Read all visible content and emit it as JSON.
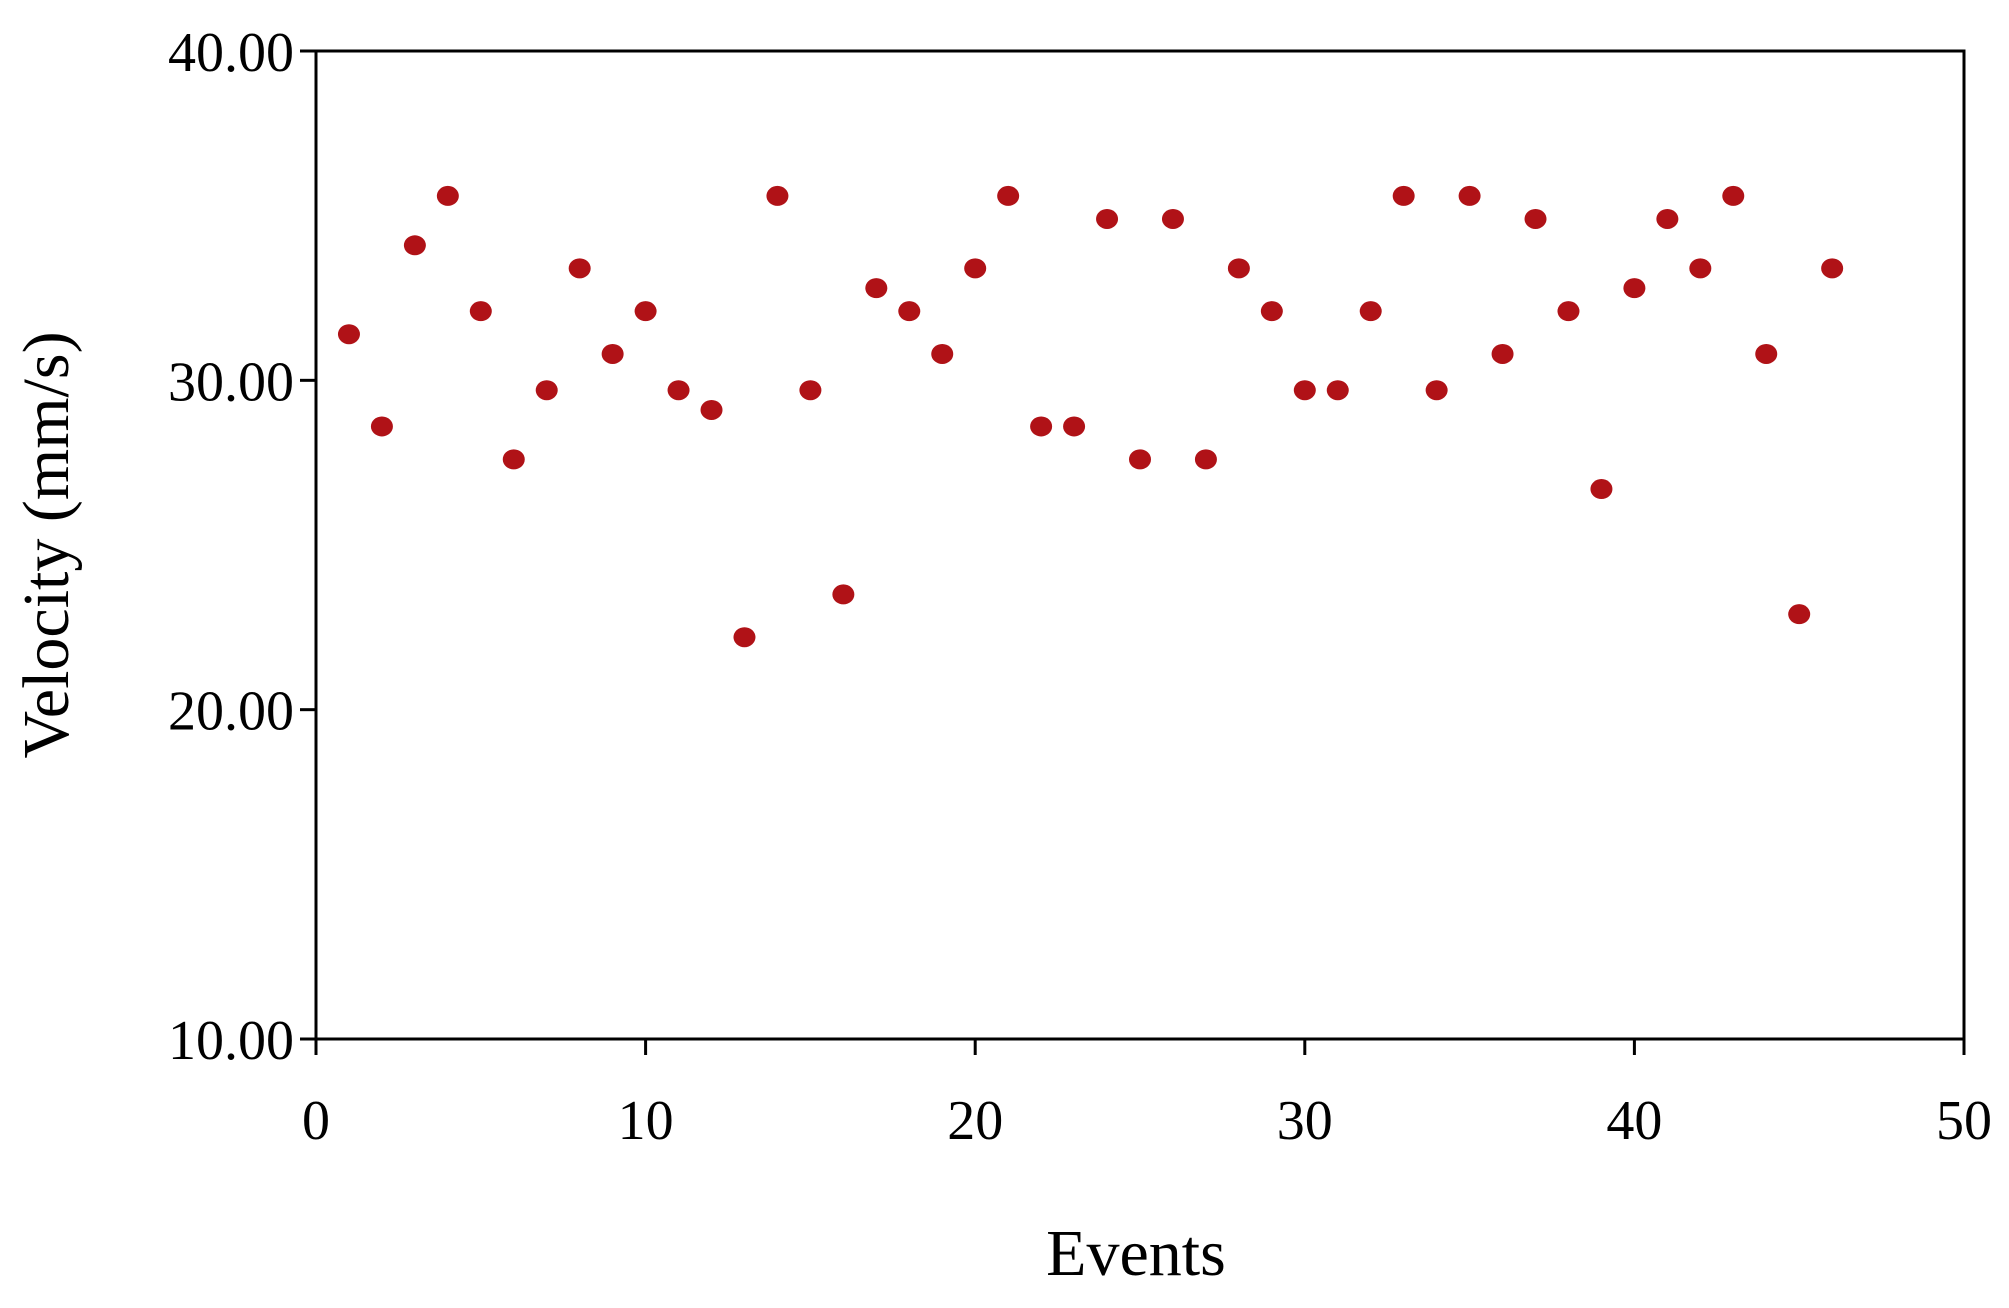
{
  "chart_data": {
    "type": "scatter",
    "title": "",
    "xlabel": "Events",
    "ylabel": "Velocity (mm/s)",
    "xlim": [
      0,
      50
    ],
    "ylim": [
      10,
      40
    ],
    "x_ticks": [
      "0",
      "10",
      "20",
      "30",
      "40",
      "50"
    ],
    "y_ticks": [
      "10.00",
      "20.00",
      "30.00",
      "40.00"
    ],
    "grid": false,
    "legend": "none",
    "marker_color": "#B01217",
    "series": [
      {
        "x": [
          1,
          2,
          3,
          4,
          5,
          6,
          7,
          8,
          9,
          10,
          11,
          12,
          13,
          14,
          15,
          16,
          17,
          18,
          19,
          20,
          21,
          22,
          23,
          24,
          25,
          26,
          27,
          28,
          29,
          30,
          31,
          32,
          33,
          34,
          35,
          36,
          37,
          38,
          39,
          40,
          41,
          42,
          43,
          44,
          45,
          46
        ],
        "y": [
          31.4,
          28.6,
          34.1,
          35.6,
          32.1,
          27.6,
          29.7,
          33.4,
          30.8,
          32.1,
          29.7,
          29.1,
          22.2,
          35.6,
          29.7,
          23.5,
          32.8,
          32.1,
          30.8,
          33.4,
          35.6,
          28.6,
          28.6,
          34.9,
          27.6,
          34.9,
          27.6,
          33.4,
          32.1,
          29.7,
          29.7,
          32.1,
          35.6,
          29.7,
          35.6,
          30.8,
          34.9,
          32.1,
          26.7,
          32.8,
          34.9,
          33.4,
          35.6,
          30.8,
          22.9,
          33.4
        ]
      }
    ]
  }
}
